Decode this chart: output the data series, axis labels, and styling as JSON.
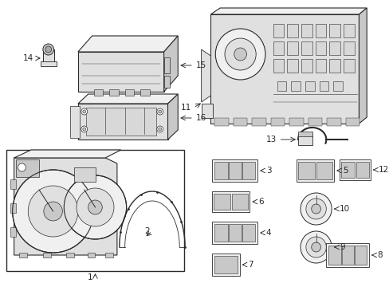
{
  "bg": "#ffffff",
  "lc": "#2a2a2a",
  "lc_light": "#666666",
  "fill_light": "#f0f0f0",
  "fill_med": "#e0e0e0",
  "fill_dark": "#c8c8c8"
}
